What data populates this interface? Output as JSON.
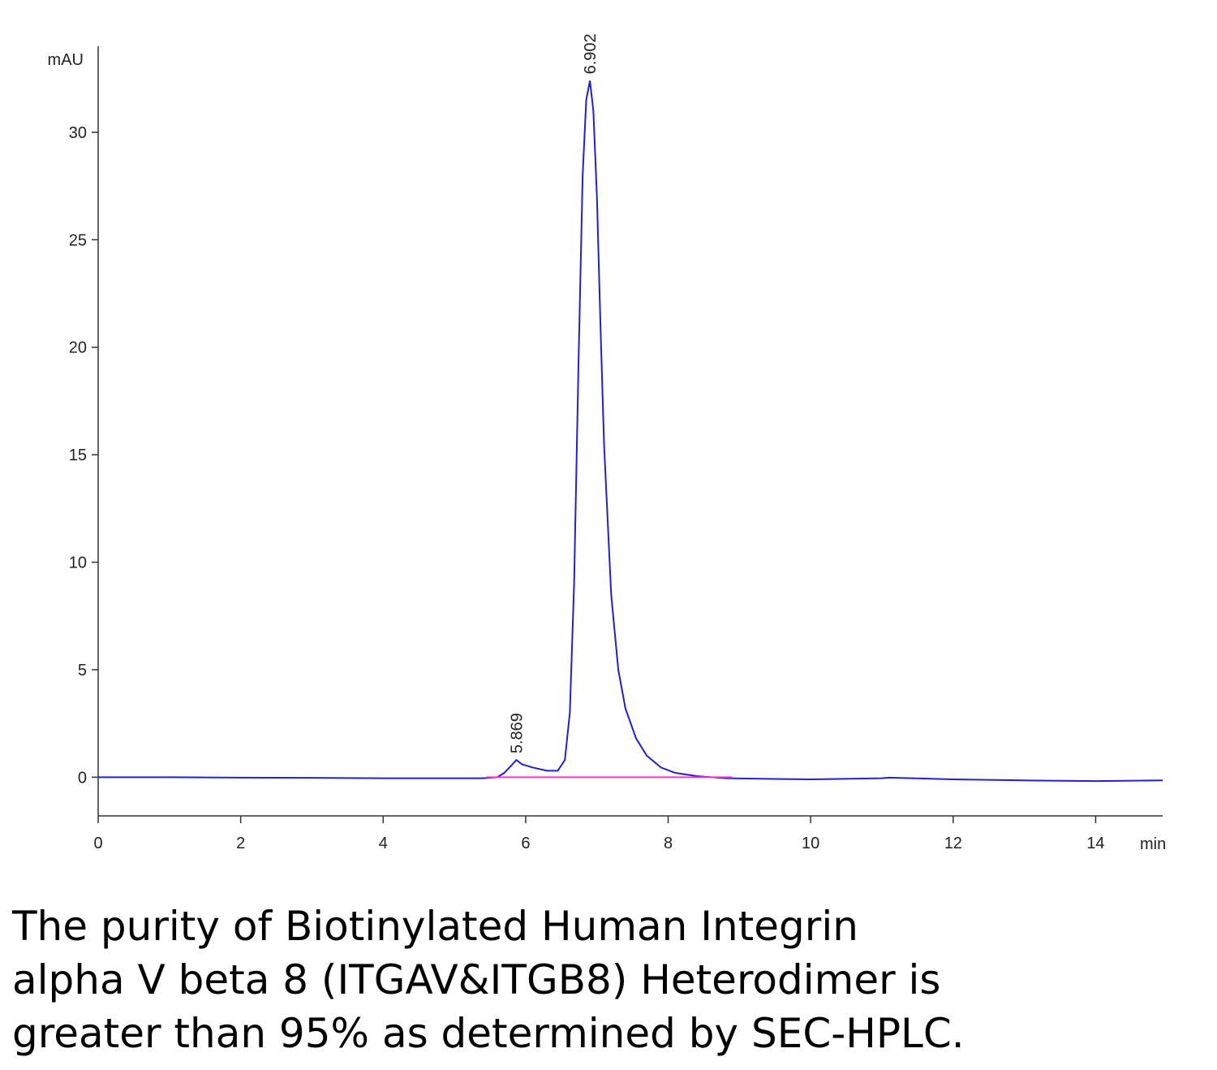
{
  "chart_data": {
    "type": "line",
    "ylabel": "mAU",
    "xlabel": "min",
    "xlim": [
      0,
      14.94
    ],
    "ylim": [
      -1.8,
      34
    ],
    "xticks": [
      0,
      2,
      4,
      6,
      8,
      10,
      12,
      14
    ],
    "yticks": [
      0,
      5,
      10,
      15,
      20,
      25,
      30
    ],
    "series": [
      {
        "color": "#2020d0",
        "x": [
          0,
          1,
          2,
          3,
          4,
          5,
          5.4,
          5.6,
          5.7,
          5.8,
          5.869,
          5.95,
          6.1,
          6.3,
          6.45,
          6.55,
          6.62,
          6.68,
          6.74,
          6.8,
          6.85,
          6.902,
          6.95,
          7.0,
          7.05,
          7.1,
          7.2,
          7.3,
          7.4,
          7.55,
          7.7,
          7.9,
          8.1,
          8.4,
          8.8,
          9.5,
          10,
          11,
          11.1,
          12,
          13,
          14,
          14.94
        ],
        "values": [
          0,
          0,
          -0.02,
          -0.03,
          -0.05,
          -0.05,
          -0.05,
          0.0,
          0.2,
          0.55,
          0.8,
          0.6,
          0.45,
          0.3,
          0.3,
          0.8,
          3,
          9,
          19,
          28,
          31.5,
          32.4,
          31,
          27,
          21,
          15.5,
          8.5,
          5,
          3.2,
          1.8,
          1.0,
          0.45,
          0.2,
          0.05,
          -0.05,
          -0.08,
          -0.1,
          -0.05,
          -0.02,
          -0.1,
          -0.15,
          -0.18,
          -0.15
        ]
      },
      {
        "color": "#ff33cc",
        "x": [
          5.45,
          8.9
        ],
        "values": [
          0,
          0
        ]
      }
    ],
    "annotations": [
      {
        "text": "5.869",
        "x": 5.869,
        "y": 0.8
      },
      {
        "text": "6.902",
        "x": 6.902,
        "y": 32.4
      }
    ]
  },
  "caption": [
    "The purity of Biotinylated Human Integrin",
    "alpha V beta 8 (ITGAV&ITGB8) Heterodimer is",
    "greater than 95% as determined by SEC-HPLC."
  ]
}
